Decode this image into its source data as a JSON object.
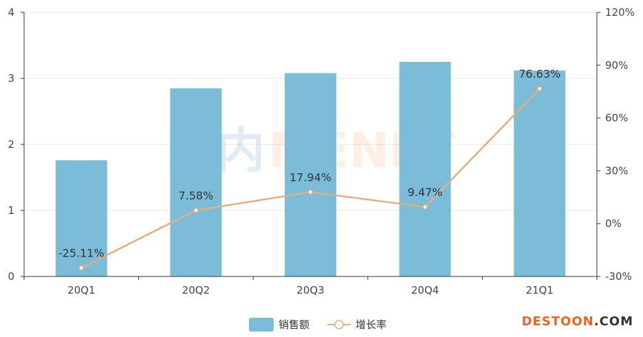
{
  "chart_data": {
    "type": "bar",
    "categories": [
      "20Q1",
      "20Q2",
      "20Q3",
      "20Q4",
      "21Q1"
    ],
    "series": [
      {
        "name": "销售额",
        "type": "bar",
        "axis": "left",
        "values": [
          1.76,
          2.85,
          3.08,
          3.25,
          3.12
        ],
        "color": "#7bbcd8"
      },
      {
        "name": "增长率",
        "type": "line",
        "axis": "right",
        "values": [
          -25.11,
          7.58,
          17.94,
          9.47,
          76.63
        ],
        "labels": [
          "-25.11%",
          "7.58%",
          "17.94%",
          "9.47%",
          "76.63%"
        ],
        "color": "#e2ae7f"
      }
    ],
    "y_left": {
      "min": 0,
      "max": 4,
      "ticks": [
        "0",
        "1",
        "2",
        "3",
        "4"
      ]
    },
    "y_right": {
      "min": -30,
      "max": 120,
      "ticks": [
        "-30%",
        "0%",
        "30%",
        "60%",
        "90%",
        "120%"
      ]
    },
    "grid": true,
    "legend_position": "bottom-center"
  },
  "watermark": {
    "left": "米内",
    "right": "MENET"
  },
  "brand": {
    "main": "DESTOON",
    "suffix": ".COM"
  }
}
